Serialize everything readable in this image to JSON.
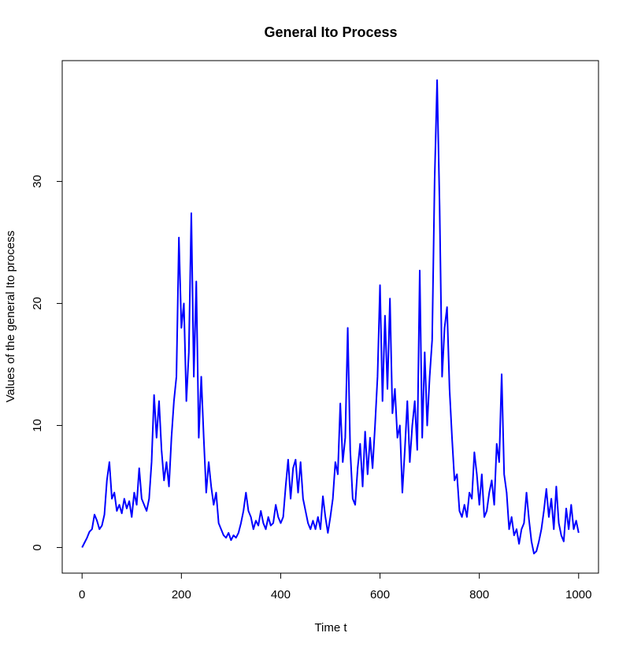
{
  "chart_data": {
    "type": "line",
    "title": "General Ito Process",
    "x_label": "Time t",
    "y_label": "Values of the general Ito process",
    "xlim": [
      -40,
      1040
    ],
    "ylim": [
      -2.1,
      39.9
    ],
    "xticks": [
      0,
      200,
      400,
      600,
      800,
      1000
    ],
    "yticks": [
      0,
      10,
      20,
      30
    ],
    "grid": false,
    "x": [
      0,
      5,
      10,
      15,
      20,
      25,
      30,
      35,
      40,
      45,
      50,
      55,
      60,
      65,
      70,
      75,
      80,
      85,
      90,
      95,
      100,
      105,
      110,
      115,
      120,
      125,
      130,
      135,
      140,
      145,
      150,
      155,
      160,
      165,
      170,
      175,
      180,
      185,
      190,
      195,
      200,
      205,
      210,
      215,
      220,
      225,
      230,
      235,
      240,
      245,
      250,
      255,
      260,
      265,
      270,
      275,
      280,
      285,
      290,
      295,
      300,
      305,
      310,
      315,
      320,
      325,
      330,
      335,
      340,
      345,
      350,
      355,
      360,
      365,
      370,
      375,
      380,
      385,
      390,
      395,
      400,
      405,
      410,
      415,
      420,
      425,
      430,
      435,
      440,
      445,
      450,
      455,
      460,
      465,
      470,
      475,
      480,
      485,
      490,
      495,
      500,
      505,
      510,
      515,
      520,
      525,
      530,
      535,
      540,
      545,
      550,
      555,
      560,
      565,
      570,
      575,
      580,
      585,
      590,
      595,
      600,
      605,
      610,
      615,
      620,
      625,
      630,
      635,
      640,
      645,
      650,
      655,
      660,
      665,
      670,
      675,
      680,
      685,
      690,
      695,
      700,
      705,
      710,
      715,
      720,
      725,
      730,
      735,
      740,
      745,
      750,
      755,
      760,
      765,
      770,
      775,
      780,
      785,
      790,
      795,
      800,
      805,
      810,
      815,
      820,
      825,
      830,
      835,
      840,
      845,
      850,
      855,
      860,
      865,
      870,
      875,
      880,
      885,
      890,
      895,
      900,
      905,
      910,
      915,
      920,
      925,
      930,
      935,
      940,
      945,
      950,
      955,
      960,
      965,
      970,
      975,
      980,
      985,
      990,
      995,
      1000
    ],
    "series": [
      {
        "color": "#0000ff",
        "values": [
          0,
          0.4,
          0.8,
          1.3,
          1.5,
          2.7,
          2.2,
          1.5,
          1.8,
          2.7,
          5.5,
          7,
          4,
          4.5,
          3,
          3.5,
          2.8,
          4,
          3.2,
          3.8,
          2.5,
          4.5,
          3.5,
          6.5,
          4,
          3.5,
          3,
          4,
          7,
          12.5,
          9,
          12,
          8,
          5.5,
          7,
          5,
          9,
          12,
          14,
          25.4,
          18,
          20,
          12,
          16,
          27.4,
          14,
          21.8,
          9,
          14,
          9,
          4.5,
          7,
          5,
          3.5,
          4.5,
          2,
          1.5,
          1,
          0.8,
          1.2,
          0.6,
          1,
          0.8,
          1.2,
          2,
          3,
          4.5,
          3,
          2.5,
          1.5,
          2.2,
          1.8,
          3,
          2,
          1.5,
          2.5,
          1.8,
          2,
          3.5,
          2.5,
          2,
          2.5,
          5,
          7.2,
          4,
          6.5,
          7.2,
          4.5,
          7,
          4,
          3,
          2,
          1.5,
          2.2,
          1.5,
          2.5,
          1.5,
          4.2,
          2.5,
          1.2,
          2.5,
          4,
          7,
          6,
          11.8,
          7,
          9,
          18,
          8,
          4,
          3.5,
          6.5,
          8.5,
          5,
          9.5,
          6,
          9,
          6.5,
          10,
          14,
          21.5,
          12,
          19,
          13,
          20.4,
          11,
          13,
          9,
          10,
          4.5,
          8,
          12,
          7,
          10,
          12,
          8,
          22.7,
          9,
          16,
          10,
          14,
          17,
          30.2,
          38.3,
          28,
          14,
          18,
          19.7,
          13,
          9,
          5.5,
          6,
          3,
          2.5,
          3.5,
          2.5,
          4.5,
          4,
          7.8,
          6,
          3.5,
          6,
          2.5,
          3,
          4.5,
          5.5,
          3.5,
          8.5,
          7,
          14.2,
          6,
          4.5,
          1.5,
          2.5,
          1,
          1.5,
          0.3,
          1.5,
          2,
          4.5,
          2.3,
          0.5,
          -0.5,
          -0.3,
          0.5,
          1.5,
          3,
          4.8,
          2.5,
          4,
          1.5,
          5,
          2,
          1,
          0.5,
          3.2,
          1.5,
          3.5,
          1.5,
          2.2,
          1.2
        ]
      }
    ]
  }
}
